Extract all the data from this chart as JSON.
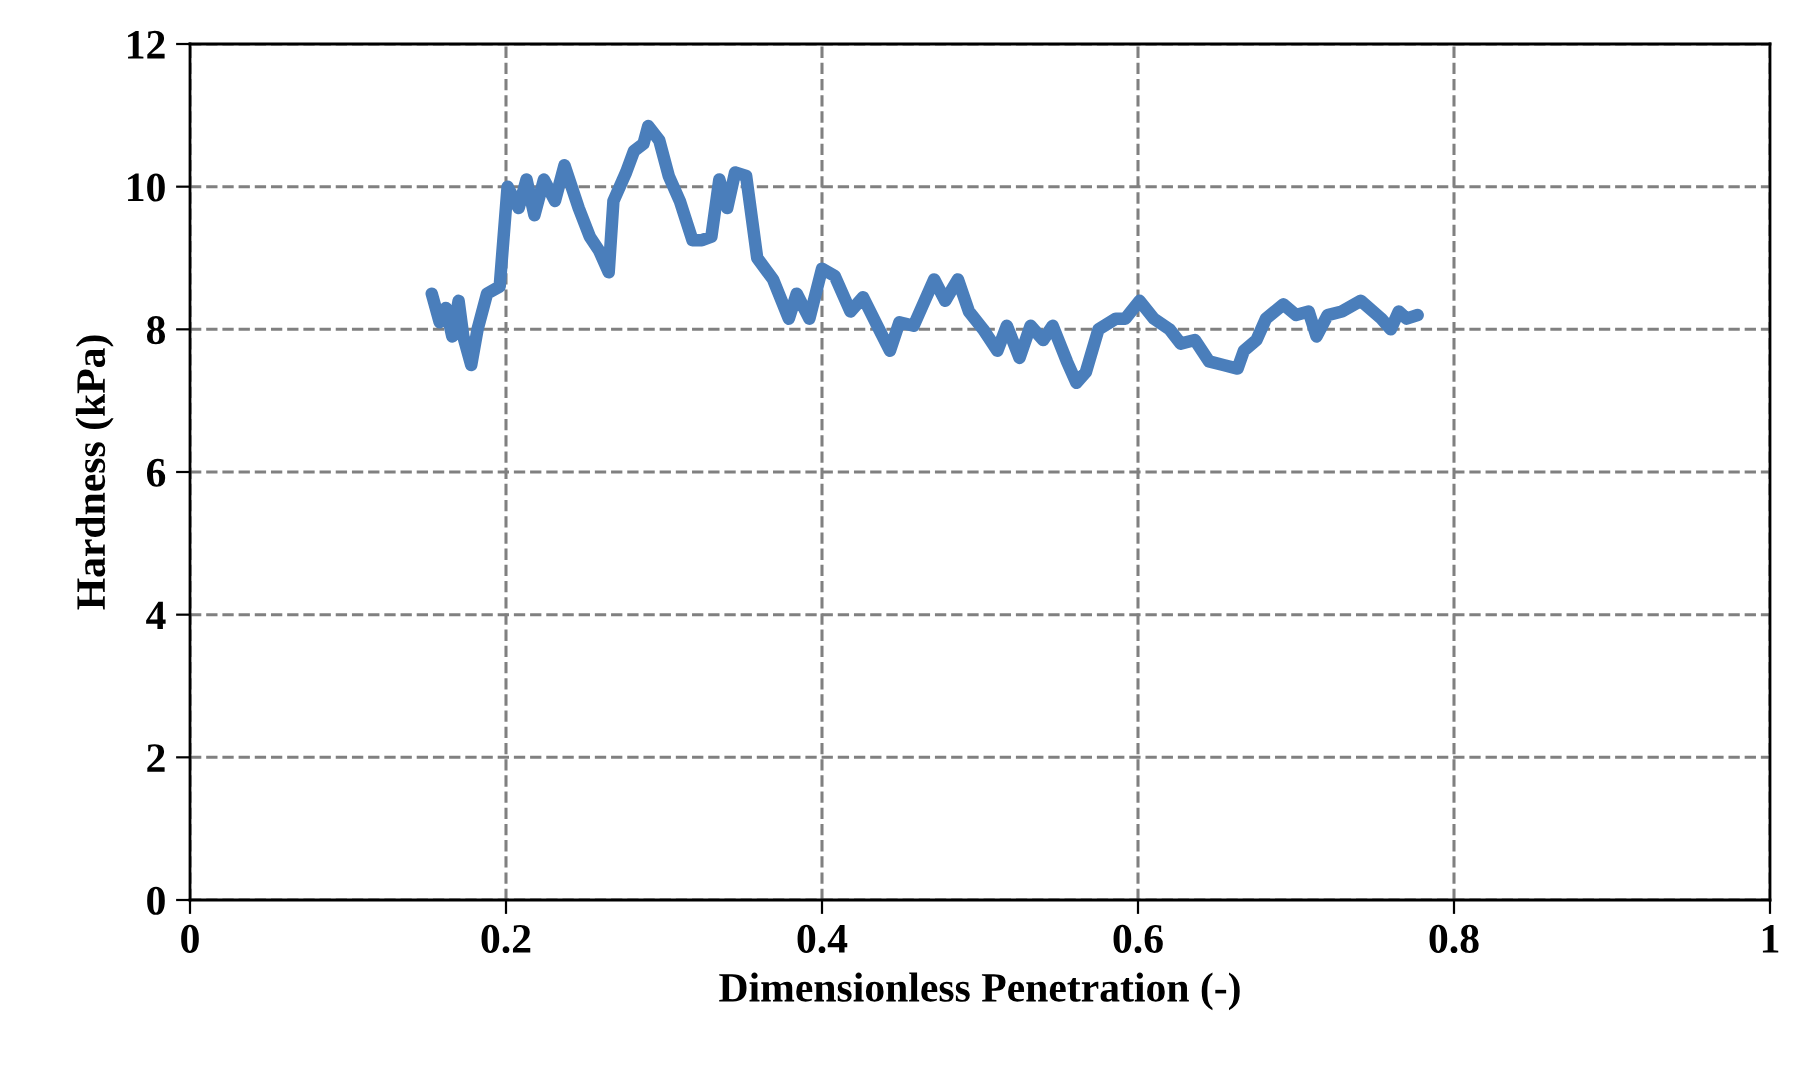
{
  "chart_data": {
    "type": "line",
    "xlabel": "Dimensionless Penetration (-)",
    "ylabel": "Hardness (kPa)",
    "xlim": [
      0,
      1
    ],
    "ylim": [
      0,
      12
    ],
    "xticks": [
      0,
      0.2,
      0.4,
      0.6,
      0.8,
      1
    ],
    "yticks": [
      0,
      2,
      4,
      6,
      8,
      10,
      12
    ],
    "grid": true,
    "line_style": "solid",
    "marker": "none",
    "series": [
      {
        "color": "#4a7ebb",
        "x": [
          0.153,
          0.158,
          0.162,
          0.166,
          0.17,
          0.173,
          0.178,
          0.182,
          0.188,
          0.196,
          0.201,
          0.208,
          0.213,
          0.218,
          0.224,
          0.231,
          0.237,
          0.246,
          0.253,
          0.259,
          0.265,
          0.268,
          0.276,
          0.281,
          0.287,
          0.29,
          0.297,
          0.303,
          0.31,
          0.318,
          0.324,
          0.33,
          0.335,
          0.34,
          0.345,
          0.352,
          0.359,
          0.369,
          0.379,
          0.384,
          0.392,
          0.4,
          0.408,
          0.418,
          0.426,
          0.435,
          0.443,
          0.449,
          0.458,
          0.465,
          0.471,
          0.478,
          0.486,
          0.493,
          0.502,
          0.511,
          0.517,
          0.525,
          0.532,
          0.54,
          0.546,
          0.555,
          0.561,
          0.567,
          0.575,
          0.586,
          0.592,
          0.601,
          0.61,
          0.62,
          0.627,
          0.636,
          0.645,
          0.654,
          0.663,
          0.667,
          0.675,
          0.681,
          0.692,
          0.7,
          0.708,
          0.713,
          0.72,
          0.729,
          0.741,
          0.754,
          0.76,
          0.765,
          0.77,
          0.777
        ],
        "values": [
          8.5,
          8.1,
          8.3,
          7.9,
          8.4,
          7.9,
          7.5,
          8.0,
          8.5,
          8.6,
          10.0,
          9.7,
          10.1,
          9.6,
          10.1,
          9.8,
          10.3,
          9.7,
          9.3,
          9.1,
          8.8,
          9.8,
          10.2,
          10.5,
          10.6,
          10.85,
          10.65,
          10.15,
          9.8,
          9.25,
          9.25,
          9.3,
          10.1,
          9.7,
          10.2,
          10.15,
          9.0,
          8.7,
          8.15,
          8.5,
          8.15,
          8.85,
          8.75,
          8.25,
          8.45,
          8.05,
          7.7,
          8.1,
          8.05,
          8.4,
          8.7,
          8.4,
          8.7,
          8.25,
          8.0,
          7.7,
          8.05,
          7.6,
          8.05,
          7.85,
          8.05,
          7.55,
          7.25,
          7.4,
          8.0,
          8.15,
          8.15,
          8.4,
          8.15,
          8.0,
          7.8,
          7.85,
          7.55,
          7.5,
          7.45,
          7.7,
          7.85,
          8.15,
          8.35,
          8.2,
          8.25,
          7.9,
          8.2,
          8.25,
          8.4,
          8.15,
          8.0,
          8.25,
          8.15,
          8.2
        ]
      }
    ]
  }
}
